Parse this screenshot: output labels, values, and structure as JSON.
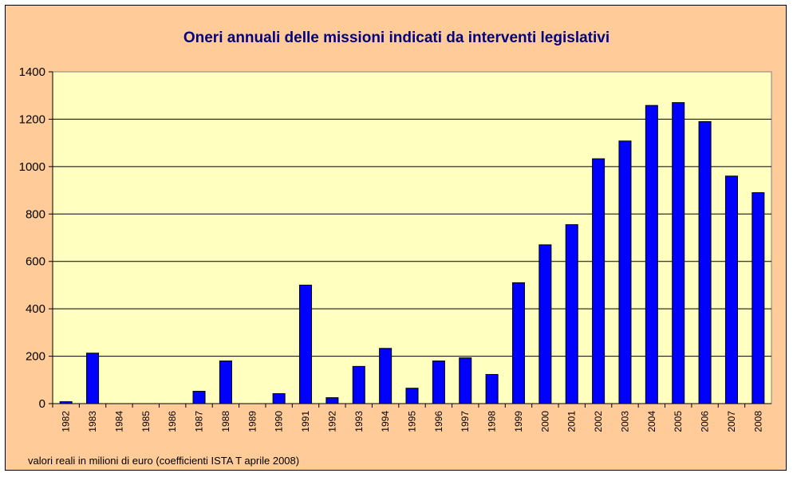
{
  "chart_data": {
    "type": "bar",
    "title": "Oneri annuali delle missioni indicati da interventi legislativi",
    "footnote": "valori reali in milioni di euro (coefficienti ISTA T aprile 2008)",
    "xlabel": "",
    "ylabel": "",
    "ylim": [
      0,
      1400
    ],
    "yticks": [
      "0",
      "200",
      "400",
      "600",
      "800",
      "1000",
      "1200",
      "1400"
    ],
    "grid": true,
    "legend": "none",
    "categories": [
      "1982",
      "1983",
      "1984",
      "1985",
      "1986",
      "1987",
      "1988",
      "1989",
      "1990",
      "1991",
      "1992",
      "1993",
      "1994",
      "1995",
      "1996",
      "1997",
      "1998",
      "1999",
      "2000",
      "2001",
      "2002",
      "2003",
      "2004",
      "2005",
      "2006",
      "2007",
      "2008"
    ],
    "values": [
      8,
      213,
      0,
      0,
      0,
      52,
      180,
      0,
      42,
      500,
      25,
      157,
      233,
      65,
      180,
      193,
      123,
      510,
      670,
      755,
      1033,
      1108,
      1258,
      1270,
      1190,
      960,
      890
    ],
    "colors": {
      "background": "#ffcc99",
      "plot_area": "#ffffc0",
      "bar_fill": "#0000ff",
      "bar_stroke": "#000000",
      "title": "#000080",
      "grid": "#000000"
    }
  }
}
